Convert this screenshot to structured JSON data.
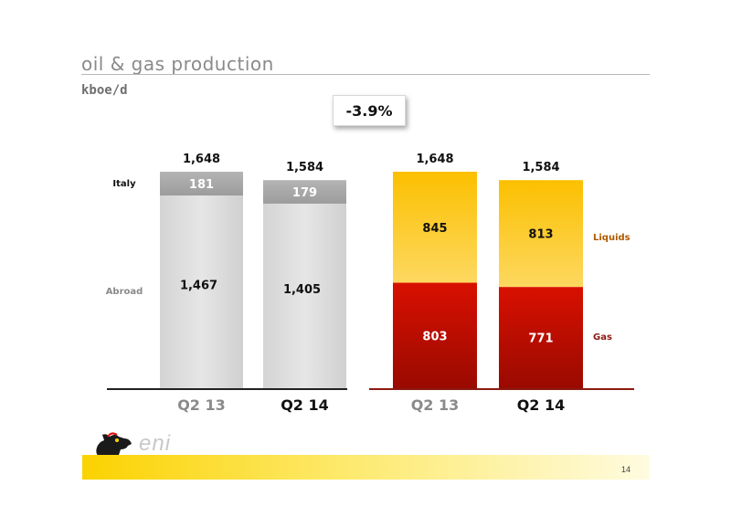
{
  "header": {
    "title": "oil & gas production",
    "unit": "kboe/d"
  },
  "delta": {
    "label": "-3.9%"
  },
  "chart_data": [
    {
      "type": "bar",
      "stacked": true,
      "categories": [
        "Q2 13",
        "Q2 14"
      ],
      "series": [
        {
          "name": "Abroad",
          "values": [
            1467,
            1405
          ]
        },
        {
          "name": "Italy",
          "values": [
            181,
            179
          ]
        }
      ],
      "totals": [
        1648,
        1584
      ],
      "colors": {
        "Abroad": "#dcdcdc",
        "Italy": "#a8a8a8"
      }
    },
    {
      "type": "bar",
      "stacked": true,
      "categories": [
        "Q2 13",
        "Q2 14"
      ],
      "series": [
        {
          "name": "Gas",
          "values": [
            803,
            771
          ]
        },
        {
          "name": "Liquids",
          "values": [
            845,
            813
          ]
        }
      ],
      "totals": [
        1648,
        1584
      ],
      "colors": {
        "Gas": "#cc1100",
        "Liquids": "#fcc400"
      }
    }
  ],
  "footer": {
    "page_number": "14",
    "brand": "eni"
  }
}
